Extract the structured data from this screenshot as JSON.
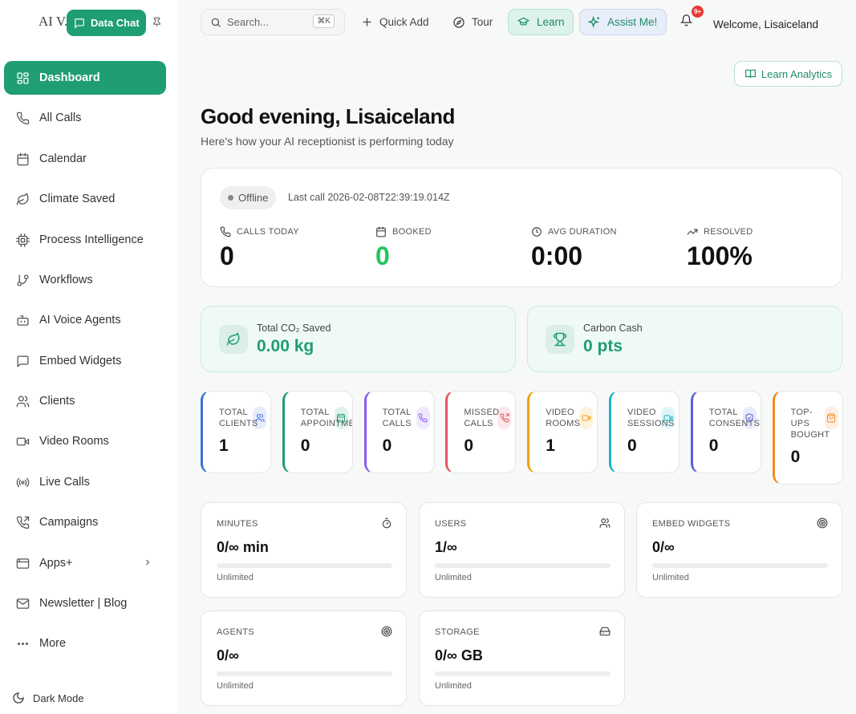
{
  "app": {
    "name": "AI V...",
    "data_chat_label": "Data Chat"
  },
  "sidebar": {
    "items": [
      {
        "label": "Dashboard",
        "icon": "dashboard-icon",
        "active": true
      },
      {
        "label": "All Calls",
        "icon": "phone-icon"
      },
      {
        "label": "Calendar",
        "icon": "calendar-icon"
      },
      {
        "label": "Climate Saved",
        "icon": "leaf-icon"
      },
      {
        "label": "Process Intelligence",
        "icon": "cpu-icon"
      },
      {
        "label": "Workflows",
        "icon": "git-branch-icon"
      },
      {
        "label": "AI Voice Agents",
        "icon": "bot-icon"
      },
      {
        "label": "Embed Widgets",
        "icon": "chat-square-icon"
      },
      {
        "label": "Clients",
        "icon": "users-icon"
      },
      {
        "label": "Video Rooms",
        "icon": "video-icon"
      },
      {
        "label": "Live Calls",
        "icon": "broadcast-icon"
      },
      {
        "label": "Campaigns",
        "icon": "phone-outgoing-icon"
      },
      {
        "label": "Apps+",
        "icon": "app-window-icon"
      },
      {
        "label": "Newsletter | Blog",
        "icon": "mail-icon"
      },
      {
        "label": "More",
        "icon": "more-dots-icon"
      }
    ],
    "dark_mode_label": "Dark Mode"
  },
  "topbar": {
    "search_placeholder": "Search...",
    "search_shortcut": "⌘K",
    "quick_add": "Quick Add",
    "tour": "Tour",
    "learn": "Learn",
    "assist": "Assist Me!",
    "notification_badge": "9+",
    "welcome": "Welcome, Lisaiceland"
  },
  "header": {
    "learn_analytics": "Learn Analytics",
    "greeting": "Good evening, Lisaiceland",
    "subtitle": "Here's how your AI receptionist is performing today"
  },
  "status": {
    "state": "Offline",
    "last_call": "Last call 2026-02-08T22:39:19.014Z",
    "kpis": [
      {
        "label": "CALLS TODAY",
        "value": "0",
        "icon": "phone-icon",
        "color": "#111111"
      },
      {
        "label": "BOOKED",
        "value": "0",
        "icon": "calendar-icon",
        "color": "#22c55e"
      },
      {
        "label": "AVG DURATION",
        "value": "0:00",
        "icon": "clock-icon",
        "color": "#111111"
      },
      {
        "label": "RESOLVED",
        "value": "100%",
        "icon": "trending-up-icon",
        "color": "#111111"
      }
    ]
  },
  "eco": [
    {
      "label": "Total CO₂ Saved",
      "value": "0.00 kg",
      "icon": "leaf-icon"
    },
    {
      "label": "Carbon Cash",
      "value": "0 pts",
      "icon": "trophy-icon"
    }
  ],
  "stats": [
    {
      "label": "TOTAL\nCLIENTS",
      "value": "1",
      "color": "#3b6fd6",
      "icon": "users-icon"
    },
    {
      "label": "TOTAL\nAPPOINTMENTS",
      "value": "0",
      "color": "#1f9d74",
      "icon": "calendar-icon"
    },
    {
      "label": "TOTAL\nCALLS",
      "value": "0",
      "color": "#8b5cf6",
      "icon": "phone-icon"
    },
    {
      "label": "MISSED\nCALLS",
      "value": "0",
      "color": "#e05561",
      "icon": "phone-missed-icon"
    },
    {
      "label": "VIDEO\nROOMS",
      "value": "1",
      "color": "#f59e0b",
      "icon": "video-icon"
    },
    {
      "label": "VIDEO\nSESSIONS",
      "value": "0",
      "color": "#16b5c9",
      "icon": "video-icon"
    },
    {
      "label": "TOTAL\nCONSENTS",
      "value": "0",
      "color": "#5b5fd6",
      "icon": "shield-check-icon"
    },
    {
      "label": "TOP-\nUPS\nBOUGHT",
      "value": "0",
      "color": "#f08a24",
      "icon": "shopping-bag-icon"
    }
  ],
  "usage": [
    {
      "label": "MINUTES",
      "value": "0/∞ min",
      "note": "Unlimited",
      "icon": "timer-icon",
      "progress": 0
    },
    {
      "label": "USERS",
      "value": "1/∞",
      "note": "Unlimited",
      "icon": "users-icon",
      "progress": 0
    },
    {
      "label": "EMBED WIDGETS",
      "value": "0/∞",
      "note": "Unlimited",
      "icon": "target-icon",
      "progress": 0
    },
    {
      "label": "AGENTS",
      "value": "0/∞",
      "note": "Unlimited",
      "icon": "target-icon",
      "progress": 0
    },
    {
      "label": "STORAGE",
      "value": "0/∞ GB",
      "note": "Unlimited",
      "icon": "hard-drive-icon",
      "progress": 0
    }
  ]
}
